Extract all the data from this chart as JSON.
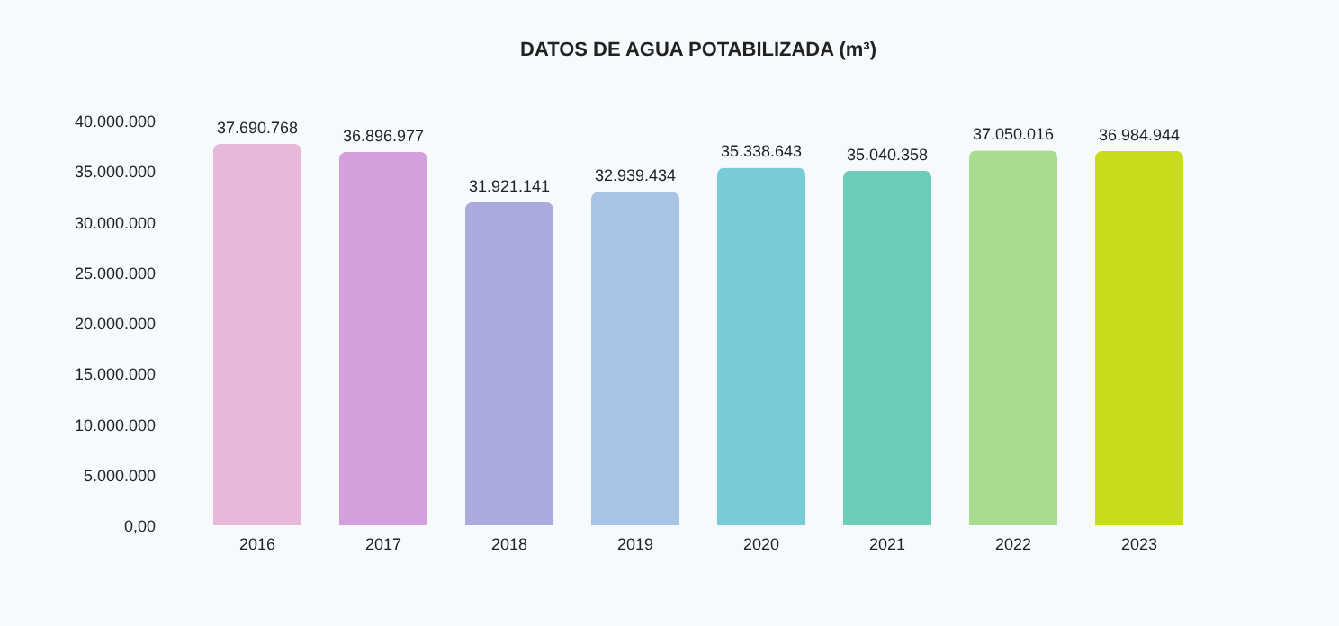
{
  "chart_data": {
    "type": "bar",
    "title": "DATOS DE AGUA POTABILIZADA (m³)",
    "categories": [
      "2016",
      "2017",
      "2018",
      "2019",
      "2020",
      "2021",
      "2022",
      "2023"
    ],
    "values": [
      37690768,
      36896977,
      31921141,
      32939434,
      35338643,
      35040358,
      37050016,
      36984944
    ],
    "colors": [
      "#e8b8d8",
      "#d4a0dc",
      "#aaaadc",
      "#a8c4e4",
      "#78ccd8",
      "#6cccb8",
      "#a8dc90",
      "#c8dc1c"
    ],
    "ylim": [
      0,
      40000000
    ],
    "yticks": [
      {
        "value": 0,
        "label": "0,00"
      },
      {
        "value": 5000000,
        "label": "5.000.000"
      },
      {
        "value": 10000000,
        "label": "10.000.000"
      },
      {
        "value": 15000000,
        "label": "15.000.000"
      },
      {
        "value": 20000000,
        "label": "20.000.000"
      },
      {
        "value": 25000000,
        "label": "25.000.000"
      },
      {
        "value": 30000000,
        "label": "30.000.000"
      },
      {
        "value": 35000000,
        "label": "35.000.000"
      },
      {
        "value": 40000000,
        "label": "40.000.000"
      }
    ],
    "value_labels": [
      "37.690.768",
      "36.896.977",
      "31.921.141",
      "32.939.434",
      "35.338.643",
      "35.040.358",
      "37.050.016",
      "36.984.944"
    ],
    "grid": false
  }
}
